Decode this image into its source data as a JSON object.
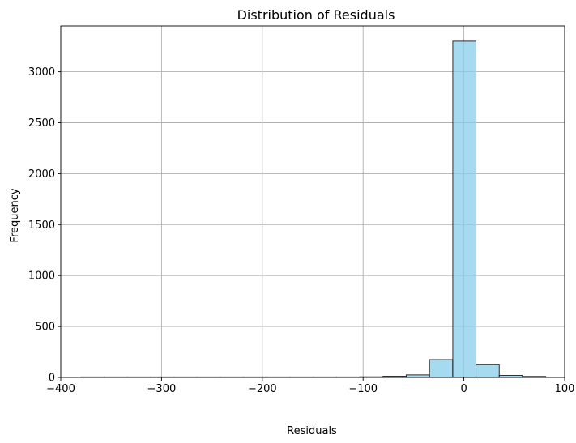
{
  "chart_data": {
    "type": "bar",
    "title": "Distribution of Residuals",
    "xlabel": "Residuals",
    "ylabel": "Frequency",
    "xlim": [
      -400,
      100
    ],
    "ylim": [
      0,
      3450
    ],
    "grid": true,
    "bar_color": "#87ceeb",
    "edge_color": "#000000",
    "grid_color": "#b0b0b0",
    "xticks": [
      -400,
      -300,
      -200,
      -100,
      0,
      100
    ],
    "xtick_labels": [
      "−400",
      "−300",
      "−200",
      "−100",
      "0",
      "100"
    ],
    "yticks": [
      0,
      500,
      1000,
      1500,
      2000,
      2500,
      3000
    ],
    "ytick_labels": [
      "0",
      "500",
      "1000",
      "1500",
      "2000",
      "2500",
      "3000"
    ],
    "bins": [
      {
        "x0": -380.0,
        "x1": -356.9,
        "count": 1
      },
      {
        "x0": -356.9,
        "x1": -333.9,
        "count": 0
      },
      {
        "x0": -333.9,
        "x1": -310.8,
        "count": 0
      },
      {
        "x0": -310.8,
        "x1": -287.8,
        "count": 0
      },
      {
        "x0": -287.8,
        "x1": -264.7,
        "count": 0
      },
      {
        "x0": -264.7,
        "x1": -241.6,
        "count": 0
      },
      {
        "x0": -241.6,
        "x1": -218.6,
        "count": 0
      },
      {
        "x0": -218.6,
        "x1": -195.5,
        "count": 0
      },
      {
        "x0": -195.5,
        "x1": -172.5,
        "count": 2
      },
      {
        "x0": -172.5,
        "x1": -149.4,
        "count": 3
      },
      {
        "x0": -149.4,
        "x1": -126.3,
        "count": 4
      },
      {
        "x0": -126.3,
        "x1": -103.3,
        "count": 4
      },
      {
        "x0": -103.3,
        "x1": -80.2,
        "count": 6
      },
      {
        "x0": -80.2,
        "x1": -57.2,
        "count": 12
      },
      {
        "x0": -57.2,
        "x1": -34.1,
        "count": 25
      },
      {
        "x0": -34.1,
        "x1": -11.0,
        "count": 175
      },
      {
        "x0": -11.0,
        "x1": 12.0,
        "count": 3300
      },
      {
        "x0": 12.0,
        "x1": 35.1,
        "count": 125
      },
      {
        "x0": 35.1,
        "x1": 58.1,
        "count": 20
      },
      {
        "x0": 58.1,
        "x1": 81.2,
        "count": 10
      }
    ]
  }
}
